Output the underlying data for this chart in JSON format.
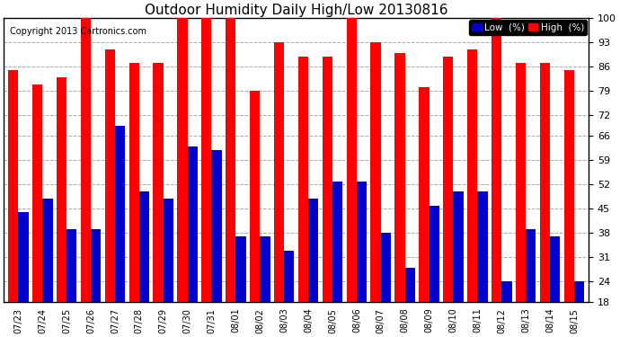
{
  "title": "Outdoor Humidity Daily High/Low 20130816",
  "copyright": "Copyright 2013 Cartronics.com",
  "dates": [
    "07/23",
    "07/24",
    "07/25",
    "07/26",
    "07/27",
    "07/28",
    "07/29",
    "07/30",
    "07/31",
    "08/01",
    "08/02",
    "08/03",
    "08/04",
    "08/05",
    "08/06",
    "08/07",
    "08/08",
    "08/09",
    "08/10",
    "08/11",
    "08/12",
    "08/13",
    "08/14",
    "08/15"
  ],
  "high": [
    85,
    81,
    83,
    101,
    91,
    87,
    87,
    100,
    100,
    100,
    79,
    93,
    89,
    89,
    100,
    93,
    90,
    80,
    89,
    91,
    100,
    87,
    87,
    85
  ],
  "low": [
    44,
    48,
    39,
    39,
    69,
    50,
    48,
    63,
    62,
    37,
    37,
    33,
    48,
    53,
    53,
    38,
    28,
    46,
    50,
    50,
    24,
    39,
    37,
    24
  ],
  "ymin": 18,
  "ymax": 100,
  "yticks": [
    18,
    24,
    31,
    38,
    45,
    52,
    59,
    66,
    72,
    79,
    86,
    93,
    100
  ],
  "high_color": "#FF0000",
  "low_color": "#0000CC",
  "bg_color": "#FFFFFF",
  "plot_bg_color": "#FFFFFF",
  "grid_color": "#AAAAAA",
  "bar_width": 0.42,
  "title_fontsize": 11,
  "copyright_fontsize": 7,
  "legend_label_low": "Low  (%)",
  "legend_label_high": "High  (%)"
}
